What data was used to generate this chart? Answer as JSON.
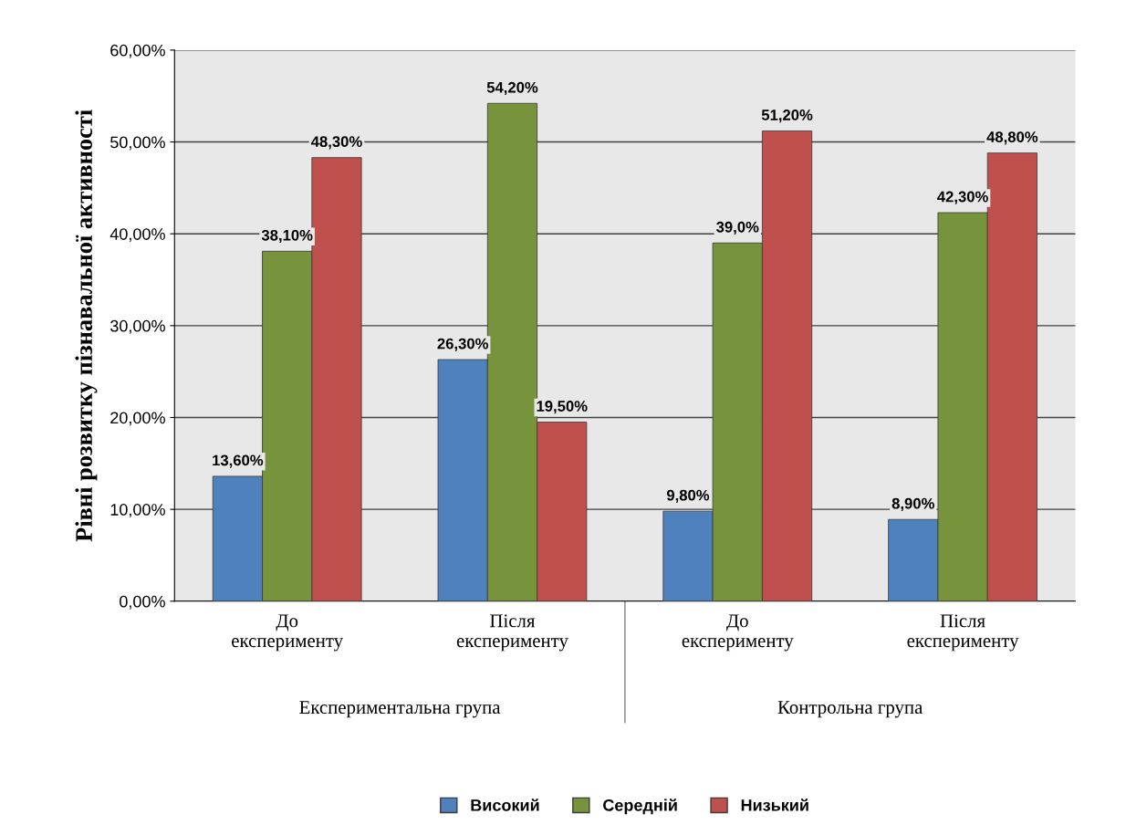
{
  "chart_data": {
    "type": "bar",
    "ylabel": "Рівні розвитку пізнавальної активності",
    "categories": [
      "До\nексперименту",
      "Після\nексперименту",
      "До\nексперименту",
      "Після\nексперименту"
    ],
    "annotations": [
      "Експериментальна група",
      "Контрольна група"
    ],
    "series": [
      {
        "name": "Високий",
        "color": "#4f81bd",
        "values": [
          13.6,
          26.3,
          9.8,
          8.9
        ],
        "value_labels": [
          "13,60%",
          "26,30%",
          "9,80%",
          "8,90%"
        ]
      },
      {
        "name": "Середній",
        "color": "#77933c",
        "values": [
          38.1,
          54.2,
          39.0,
          42.3
        ],
        "value_labels": [
          "38,10%",
          "54,20%",
          "39,0%",
          "42,30%"
        ]
      },
      {
        "name": "Низький",
        "color": "#c0504d",
        "values": [
          48.3,
          19.5,
          51.2,
          48.8
        ],
        "value_labels": [
          "48,30%",
          "19,50%",
          "51,20%",
          "48,80%"
        ]
      }
    ],
    "ylim": [
      0,
      60
    ],
    "yticks": [
      {
        "value": 0,
        "label": "0,00%"
      },
      {
        "value": 10,
        "label": "10,00%"
      },
      {
        "value": 20,
        "label": "20,00%"
      },
      {
        "value": 30,
        "label": "30,00%"
      },
      {
        "value": 40,
        "label": "40,00%"
      },
      {
        "value": 50,
        "label": "50,00%"
      },
      {
        "value": 60,
        "label": "60,00%"
      }
    ],
    "grid": "y",
    "legend": "bottom"
  }
}
